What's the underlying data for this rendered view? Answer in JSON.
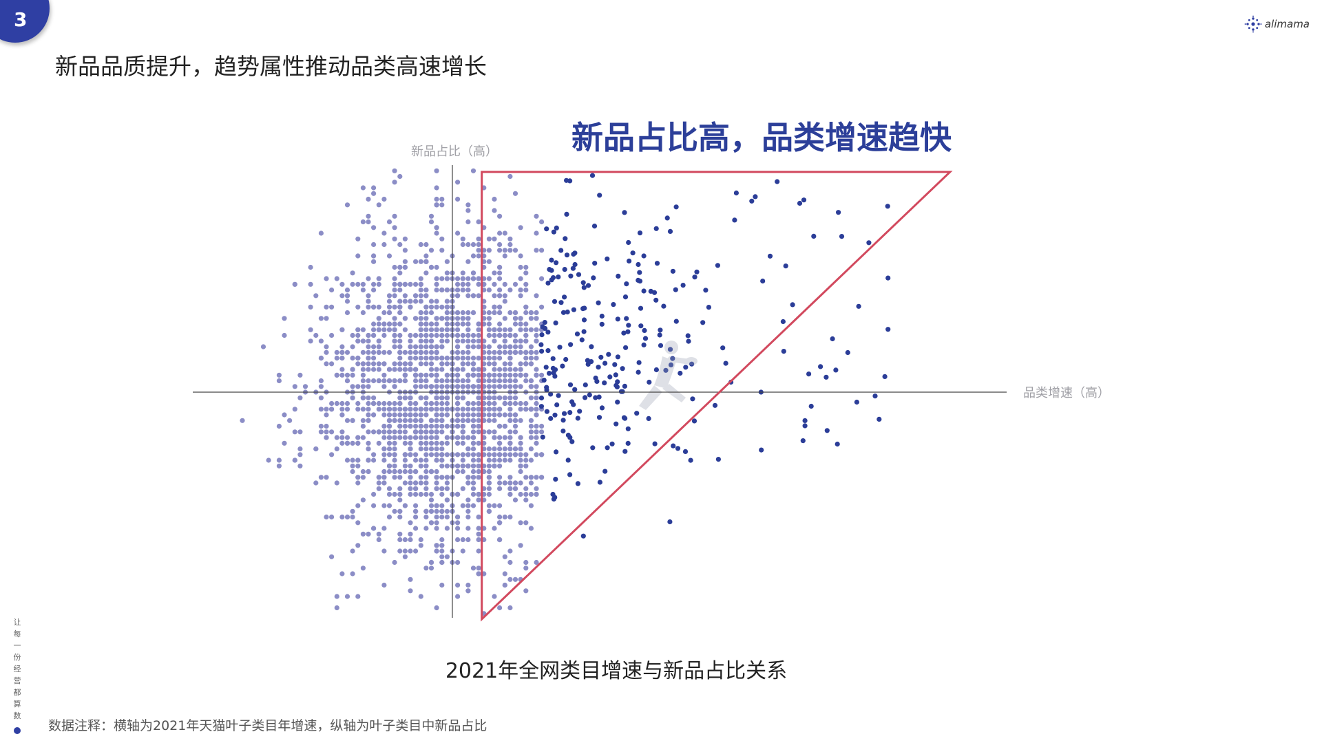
{
  "page": {
    "number": "3",
    "title": "新品品质提升，趋势属性推动品类高速增长",
    "logo_text": "alimama",
    "footnote": "数据注释：横轴为2021年天猫叶子类目年增速，纵轴为叶子类目中新品占比",
    "slogan_chars": [
      "让",
      "每",
      "一",
      "份",
      "经",
      "营",
      "都",
      "算",
      "数"
    ]
  },
  "colors": {
    "badge": "#2f3fa3",
    "dot_light": "#8b8dc6",
    "dot_dark": "#2b3d98",
    "triangle": "#d2495e",
    "highlight_text": "#2c3f99",
    "axis": "#444444",
    "axis_label": "#a0a0a6"
  },
  "chart_data": {
    "type": "scatter",
    "title": "2021年全网类目增速与新品占比关系",
    "xlabel": "品类增速（高）",
    "ylabel": "新品占比（高）",
    "highlight_label": "新品占比高，品类增速趋快",
    "xlim": [
      -10,
      22
    ],
    "ylim": [
      -10,
      10
    ],
    "grid": false,
    "legend": "none",
    "series": [
      {
        "description": "light",
        "cluster_center": [
          0,
          0
        ],
        "cluster_spread": [
          3.2,
          3.6
        ],
        "count": 2000,
        "x_range": [
          -10,
          4.2
        ]
      },
      {
        "description": "dark",
        "x_range": [
          4.2,
          21
        ],
        "count": 260
      }
    ],
    "highlight_region": {
      "shape": "triangle",
      "vertices": [
        [
          1.4,
          9.7
        ],
        [
          23.7,
          9.7
        ],
        [
          1.4,
          -10
        ]
      ]
    }
  }
}
